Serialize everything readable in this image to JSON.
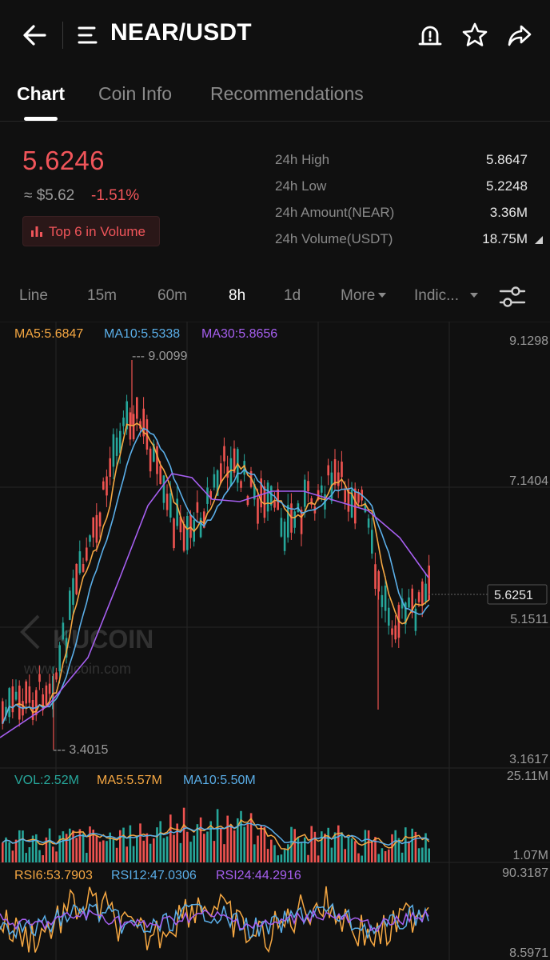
{
  "header": {
    "title": "NEAR/USDT"
  },
  "tabs": [
    "Chart",
    "Coin Info",
    "Recommendations"
  ],
  "price": {
    "last": "5.6246",
    "usd": "≈ $5.62",
    "change": "-1.51%",
    "badge": "Top 6 in Volume"
  },
  "stats": [
    {
      "label": "24h High",
      "value": "5.8647"
    },
    {
      "label": "24h Low",
      "value": "5.2248"
    },
    {
      "label": "24h Amount(NEAR)",
      "value": "3.36M"
    },
    {
      "label": "24h Volume(USDT)",
      "value": "18.75M"
    }
  ],
  "intervals": {
    "line": "Line",
    "m15": "15m",
    "m60": "60m",
    "h8": "8h",
    "d1": "1d",
    "more": "More",
    "indic": "Indic..."
  },
  "main_chart": {
    "legend": {
      "ma5": "MA5:5.6847",
      "ma10": "MA10:5.5338",
      "ma30": "MA30:5.8656"
    },
    "axis": [
      "9.1298",
      "7.1404",
      "5.1511",
      "3.1617"
    ],
    "current_price": "5.6251",
    "high_label": "--- 9.0099",
    "low_label": "--- 3.4015",
    "watermark_brand": "KUCOIN",
    "watermark_url": "www.kucoin.com"
  },
  "volume_chart": {
    "legend": {
      "vol": "VOL:2.52M",
      "ma5": "MA5:5.57M",
      "ma10": "MA10:5.50M"
    },
    "axis_top": "25.11M",
    "axis_bottom": "1.07M"
  },
  "rsi_chart": {
    "legend": {
      "rsi6": "RSI6:53.7903",
      "rsi12": "RSI12:47.0306",
      "rsi24": "RSI24:44.2916"
    },
    "axis_top": "90.3187",
    "axis_bottom": "8.5971"
  },
  "colors": {
    "up": "#26a69a",
    "down": "#ef5350",
    "ma5": "#f5a742",
    "ma10": "#5aaee8",
    "ma30": "#a65ff0",
    "price_red": "#f0555a"
  }
}
